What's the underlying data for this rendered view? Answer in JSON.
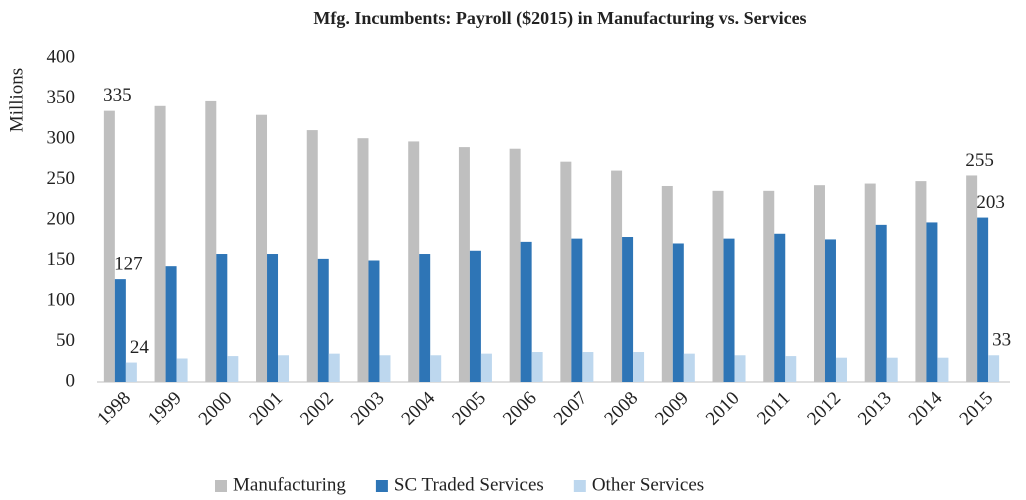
{
  "chart_data": {
    "type": "bar",
    "title": "Mfg. Incumbents:  Payroll ($2015) in Manufacturing  vs. Services",
    "y_label": "Millions",
    "categories": [
      "1998",
      "1999",
      "2000",
      "2001",
      "2002",
      "2003",
      "2004",
      "2005",
      "2006",
      "2007",
      "2008",
      "2009",
      "2010",
      "2011",
      "2012",
      "2013",
      "2014",
      "2015"
    ],
    "series": [
      {
        "name": "Manufacturing",
        "color": "#bfbfbf",
        "values": [
          335,
          341,
          347,
          330,
          311,
          301,
          297,
          290,
          288,
          272,
          261,
          242,
          236,
          236,
          243,
          245,
          248,
          255
        ],
        "value_labels": [
          "335",
          null,
          null,
          null,
          null,
          null,
          null,
          null,
          null,
          null,
          null,
          null,
          null,
          null,
          null,
          null,
          null,
          "255"
        ]
      },
      {
        "name": "SC Traded Services",
        "color": "#2e75b6",
        "values": [
          127,
          143,
          158,
          158,
          152,
          150,
          158,
          162,
          173,
          177,
          179,
          171,
          177,
          183,
          176,
          194,
          197,
          203
        ],
        "value_labels": [
          "127",
          null,
          null,
          null,
          null,
          null,
          null,
          null,
          null,
          null,
          null,
          null,
          null,
          null,
          null,
          null,
          null,
          "203"
        ]
      },
      {
        "name": "Other Services",
        "color": "#bdd7ee",
        "values": [
          24,
          29,
          32,
          33,
          35,
          33,
          33,
          35,
          37,
          37,
          37,
          35,
          33,
          32,
          30,
          30,
          30,
          33
        ],
        "value_labels": [
          "24",
          null,
          null,
          null,
          null,
          null,
          null,
          null,
          null,
          null,
          null,
          null,
          null,
          null,
          null,
          null,
          null,
          "33"
        ]
      }
    ],
    "ylim": [
      0,
      400
    ],
    "yticks": [
      0,
      50,
      100,
      150,
      200,
      250,
      300,
      350,
      400
    ],
    "grid": false,
    "legend": "bottom"
  }
}
